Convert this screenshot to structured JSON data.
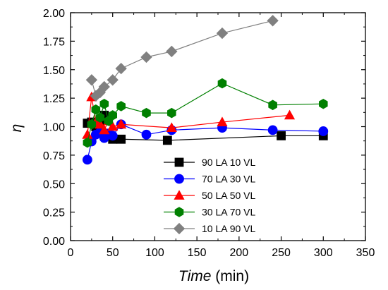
{
  "chart_data": {
    "type": "scatter",
    "title": "",
    "xlabel": {
      "italic": "Time",
      "rest": " (min)"
    },
    "ylabel": "η",
    "xlim": [
      0,
      350
    ],
    "ylim": [
      0,
      2.0
    ],
    "x_ticks": [
      "0",
      "50",
      "100",
      "150",
      "200",
      "250",
      "300",
      "350"
    ],
    "y_ticks": [
      "0.00",
      "0.25",
      "0.50",
      "0.75",
      "1.00",
      "1.25",
      "1.50",
      "1.75",
      "2.00"
    ],
    "legend_position": "bottom-center",
    "series": [
      {
        "name": "90 LA 10 VL",
        "color": "#000000",
        "marker": "square",
        "points": [
          [
            20,
            1.03
          ],
          [
            25,
            1.04
          ],
          [
            30,
            1.0
          ],
          [
            35,
            1.05
          ],
          [
            40,
            1.1
          ],
          [
            45,
            1.08
          ],
          [
            50,
            0.89
          ],
          [
            60,
            0.89
          ],
          [
            115,
            0.88
          ],
          [
            250,
            0.92
          ],
          [
            300,
            0.92
          ]
        ]
      },
      {
        "name": "70 LA 30 VL",
        "color": "#0000ff",
        "marker": "circle",
        "points": [
          [
            20,
            0.71
          ],
          [
            25,
            0.87
          ],
          [
            30,
            0.93
          ],
          [
            35,
            0.95
          ],
          [
            40,
            0.9
          ],
          [
            45,
            0.94
          ],
          [
            50,
            0.92
          ],
          [
            60,
            1.02
          ],
          [
            90,
            0.93
          ],
          [
            120,
            0.97
          ],
          [
            180,
            0.99
          ],
          [
            240,
            0.97
          ],
          [
            300,
            0.96
          ]
        ]
      },
      {
        "name": "50 LA 50 VL",
        "color": "#ff0000",
        "marker": "triangle",
        "points": [
          [
            20,
            0.93
          ],
          [
            25,
            1.26
          ],
          [
            30,
            1.04
          ],
          [
            35,
            1.02
          ],
          [
            40,
            0.97
          ],
          [
            45,
            1.05
          ],
          [
            50,
            1.0
          ],
          [
            60,
            1.02
          ],
          [
            120,
            0.99
          ],
          [
            180,
            1.04
          ],
          [
            260,
            1.1
          ]
        ]
      },
      {
        "name": "30 LA 70 VL",
        "color": "#008000",
        "marker": "hexagon",
        "points": [
          [
            20,
            0.86
          ],
          [
            25,
            1.02
          ],
          [
            30,
            1.15
          ],
          [
            35,
            1.08
          ],
          [
            40,
            1.2
          ],
          [
            45,
            1.05
          ],
          [
            50,
            1.1
          ],
          [
            60,
            1.18
          ],
          [
            90,
            1.12
          ],
          [
            120,
            1.12
          ],
          [
            180,
            1.38
          ],
          [
            240,
            1.19
          ],
          [
            300,
            1.2
          ]
        ]
      },
      {
        "name": "10 LA 90 VL",
        "color": "#808080",
        "marker": "diamond",
        "points": [
          [
            25,
            1.41
          ],
          [
            30,
            1.27
          ],
          [
            35,
            1.3
          ],
          [
            40,
            1.35
          ],
          [
            50,
            1.41
          ],
          [
            60,
            1.51
          ],
          [
            90,
            1.61
          ],
          [
            120,
            1.66
          ],
          [
            180,
            1.82
          ],
          [
            240,
            1.93
          ]
        ]
      }
    ]
  }
}
